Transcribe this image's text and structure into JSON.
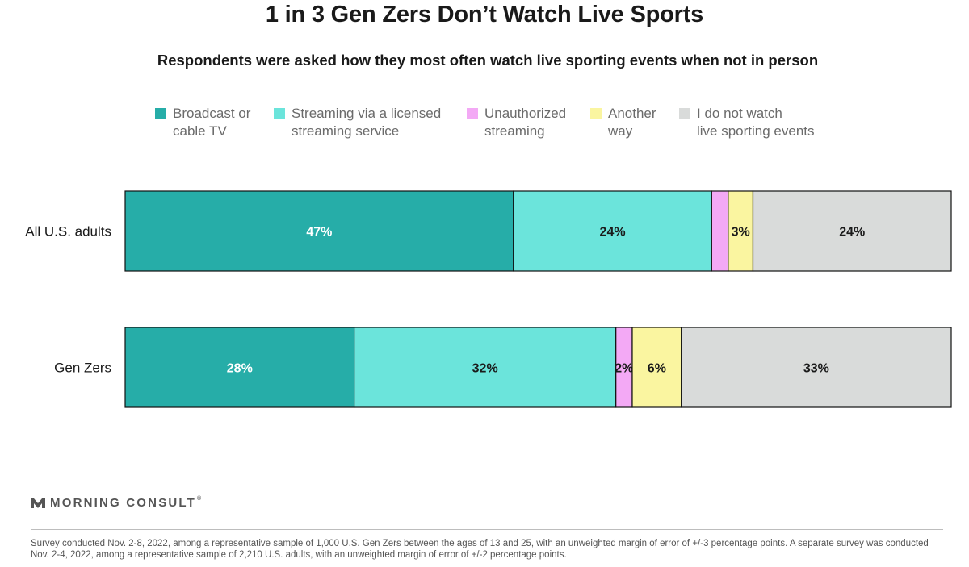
{
  "colors": {
    "broadcast": "#26ADA8",
    "streaming": "#6BE4DB",
    "unauthorized": "#F3A9F5",
    "another": "#FAF5A0",
    "none": "#D9DBDA",
    "text_dark": "#1a1a1a",
    "text_light": "#ffffff"
  },
  "legend": [
    {
      "label": "Broadcast or\ncable TV",
      "color_key": "broadcast"
    },
    {
      "label": "Streaming via a licensed\nstreaming service",
      "color_key": "streaming"
    },
    {
      "label": "Unauthorized\nstreaming",
      "color_key": "unauthorized"
    },
    {
      "label": "Another\nway",
      "color_key": "another"
    },
    {
      "label": "I do not watch\nlive sporting events",
      "color_key": "none"
    }
  ],
  "chart_data": {
    "type": "bar",
    "orientation": "horizontal",
    "stacked": true,
    "title": "1 in 3 Gen Zers Don’t Watch Live Sports",
    "subtitle": "Respondents were asked how they most often watch live sporting events when not in person",
    "categories": [
      "All U.S. adults",
      "Gen Zers"
    ],
    "series": [
      {
        "name": "Broadcast or cable TV",
        "values": [
          47,
          28
        ]
      },
      {
        "name": "Streaming via a licensed streaming service",
        "values": [
          24,
          32
        ]
      },
      {
        "name": "Unauthorized streaming",
        "values": [
          2,
          2
        ]
      },
      {
        "name": "Another way",
        "values": [
          3,
          6
        ]
      },
      {
        "name": "I do not watch live sporting events",
        "values": [
          24,
          33
        ]
      }
    ],
    "data_labels": [
      [
        "47%",
        "24%",
        "",
        "3%",
        "24%"
      ],
      [
        "28%",
        "32%",
        "2%",
        "6%",
        "33%"
      ]
    ],
    "legend_position": "top",
    "grid": false
  },
  "brand": {
    "name": "MORNING CONSULT",
    "reg": "®"
  },
  "footnote": "Survey conducted Nov. 2-8, 2022, among a representative sample of 1,000 U.S. Gen Zers between the ages of 13 and 25, with an unweighted margin of error of +/-3 percentage points. A separate survey was conducted Nov. 2-4, 2022, among a representative sample of 2,210 U.S. adults, with an unweighted margin of error of +/-2 percentage points."
}
